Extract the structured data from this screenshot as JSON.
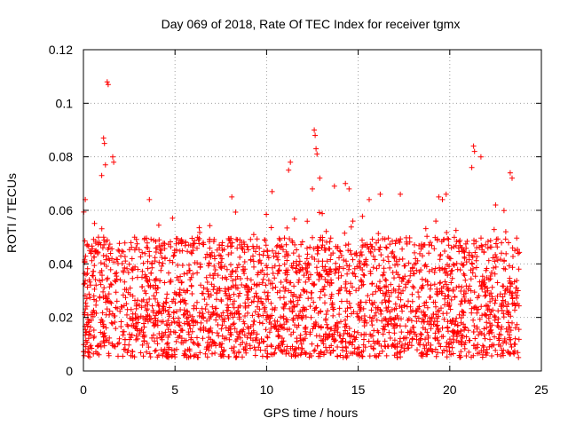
{
  "chart_data": {
    "type": "scatter",
    "title": "Day 069 of 2018, Rate Of TEC Index for receiver tgmx",
    "xlabel": "GPS time / hours",
    "ylabel": "ROTI / TECUs",
    "xlim": [
      0,
      25
    ],
    "ylim": [
      0,
      0.12
    ],
    "x_ticks": [
      0,
      5,
      10,
      15,
      20,
      25
    ],
    "y_ticks": [
      0,
      0.02,
      0.04,
      0.06,
      0.08,
      0.1,
      0.12
    ],
    "x_tick_labels": [
      "0",
      "5",
      "10",
      "15",
      "20",
      "25"
    ],
    "y_tick_labels": [
      "0",
      "0.02",
      "0.04",
      "0.06",
      "0.08",
      "0.1",
      "0.12"
    ],
    "grid": true,
    "marker": "plus",
    "color": "#ff0000",
    "series": [
      {
        "name": "ROTI",
        "x_range": [
          0,
          23.8
        ],
        "typical_band": [
          0.005,
          0.05
        ],
        "points": [
          [
            1.3,
            0.108
          ],
          [
            1.35,
            0.107
          ],
          [
            1.1,
            0.087
          ],
          [
            1.15,
            0.085
          ],
          [
            1.6,
            0.08
          ],
          [
            1.65,
            0.078
          ],
          [
            1.2,
            0.077
          ],
          [
            1.0,
            0.073
          ],
          [
            12.6,
            0.09
          ],
          [
            12.65,
            0.088
          ],
          [
            12.7,
            0.083
          ],
          [
            12.75,
            0.081
          ],
          [
            21.3,
            0.084
          ],
          [
            21.35,
            0.082
          ],
          [
            21.7,
            0.08
          ],
          [
            21.2,
            0.076
          ],
          [
            11.3,
            0.078
          ],
          [
            11.2,
            0.075
          ],
          [
            23.3,
            0.074
          ],
          [
            23.4,
            0.072
          ],
          [
            12.5,
            0.068
          ],
          [
            14.3,
            0.07
          ],
          [
            14.5,
            0.068
          ],
          [
            12.9,
            0.072
          ],
          [
            3.6,
            0.064
          ],
          [
            8.1,
            0.065
          ],
          [
            10.3,
            0.067
          ],
          [
            16.2,
            0.066
          ],
          [
            17.3,
            0.066
          ],
          [
            19.4,
            0.065
          ],
          [
            19.6,
            0.064
          ],
          [
            19.8,
            0.066
          ],
          [
            0.1,
            0.064
          ],
          [
            13.7,
            0.069
          ],
          [
            15.6,
            0.064
          ],
          [
            22.5,
            0.062
          ]
        ]
      }
    ]
  }
}
